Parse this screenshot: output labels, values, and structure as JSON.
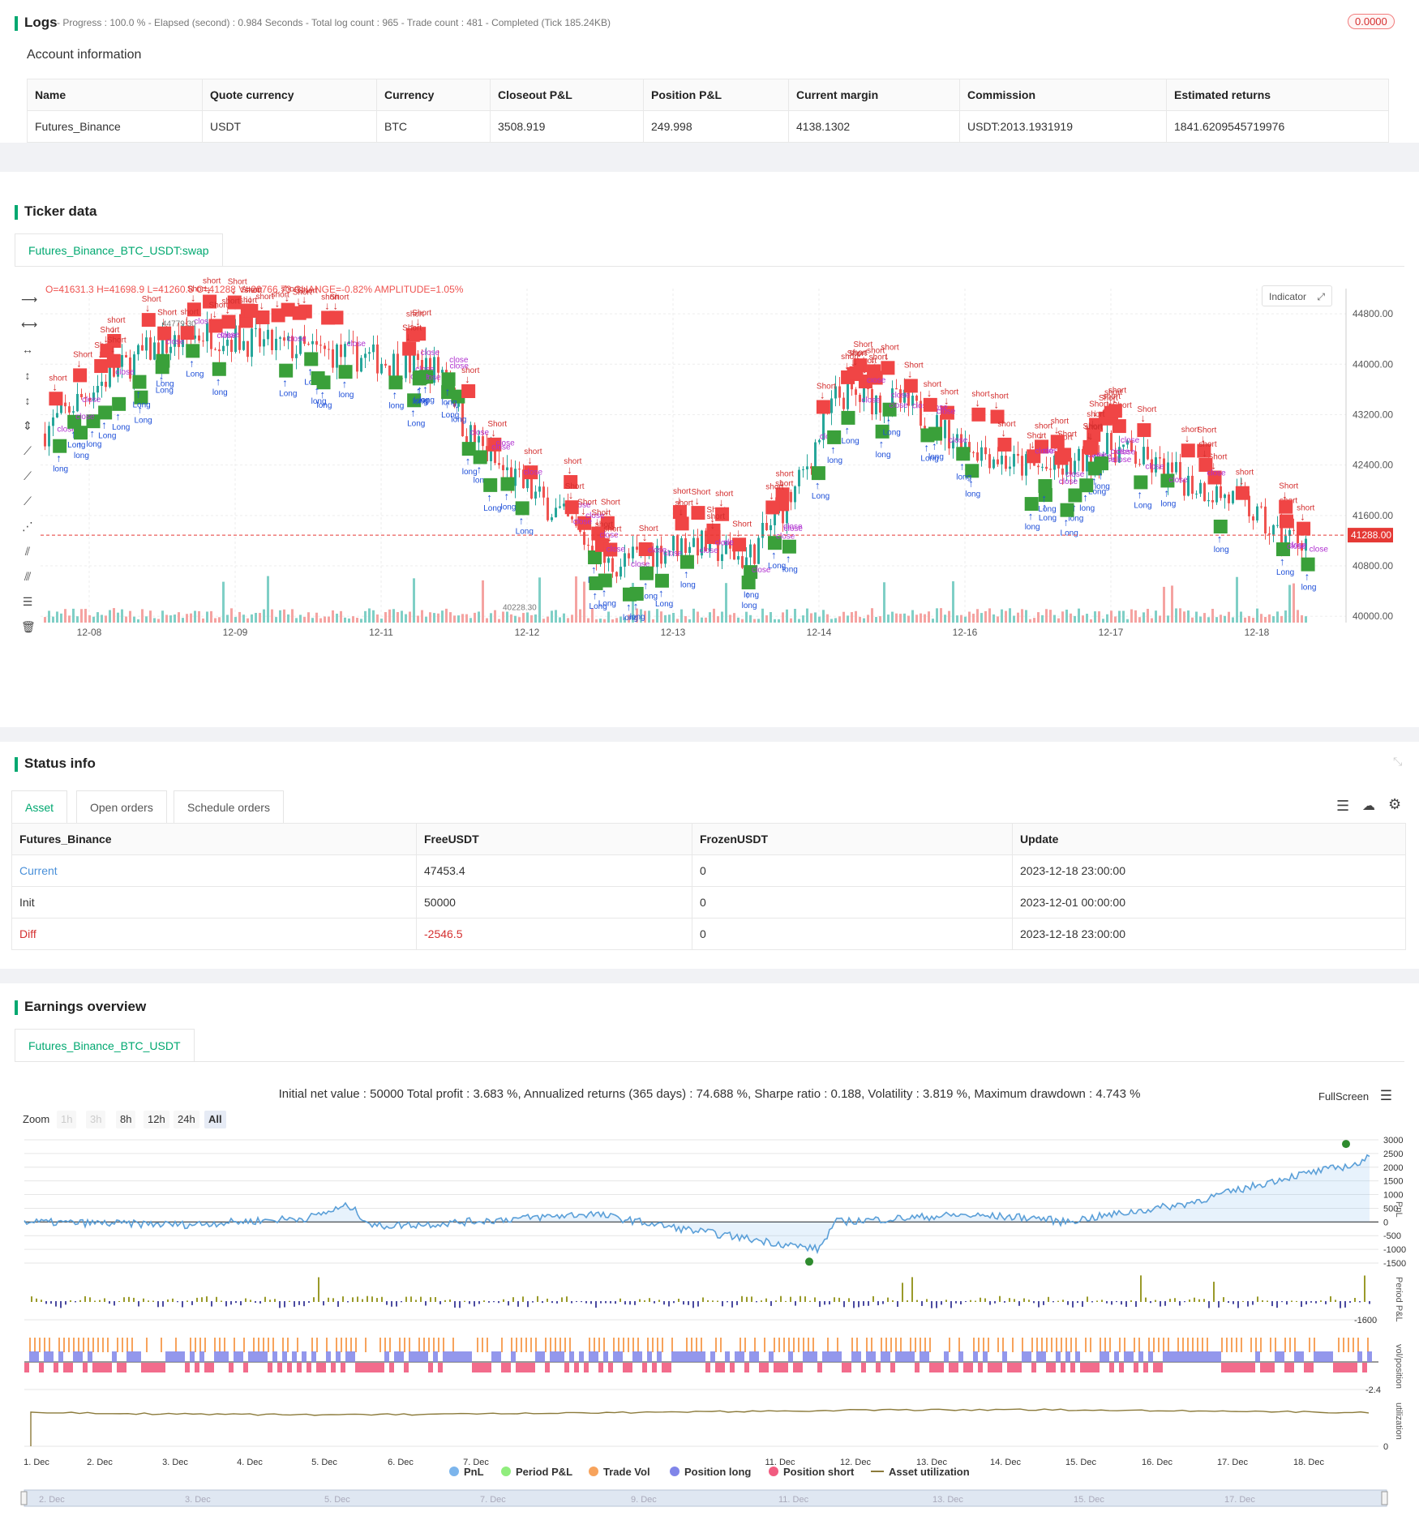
{
  "logs": {
    "title": "Logs",
    "status": "- Progress : 100.0 % - Elapsed (second) : 0.984  Seconds - Total log count : 965 - Trade count : 481 - Completed (Tick 185.24KB)",
    "badge": "0.0000"
  },
  "account": {
    "title": "Account information",
    "headers": [
      "Name",
      "Quote currency",
      "Currency",
      "Closeout P&L",
      "Position P&L",
      "Current margin",
      "Commission",
      "Estimated returns"
    ],
    "row": [
      "Futures_Binance",
      "USDT",
      "BTC",
      "3508.919",
      "249.998",
      "4138.1302",
      "USDT:2013.1931919",
      "1841.6209545719976"
    ]
  },
  "ticker": {
    "title": "Ticker data",
    "tab": "Futures_Binance_BTC_USDT:swap",
    "ohlc_o": "O=41631.3",
    "ohlc_h": "H=41698.9",
    "ohlc_l": "L=41260.8",
    "ohlc_c": "C=41288",
    "ohlc_v": "V=20766.73",
    "change": "CHANGE=-0.82%",
    "amplitude": "AMPLITUDE=1.05%",
    "indicator_btn": "Indicator",
    "last_price": "41288.00",
    "high_label": "44779.30",
    "low_label": "40228.30"
  },
  "candles_chart": {
    "type": "candlestick",
    "y_ticks": [
      "44800.00",
      "44000.00",
      "43200.00",
      "42400.00",
      "41600.00",
      "40800.00",
      "40000.00"
    ],
    "x_ticks": [
      "12-08",
      "12-09",
      "12-11",
      "12-12",
      "12-13",
      "12-14",
      "12-16",
      "12-17",
      "12-18"
    ],
    "signal_labels": {
      "short": "short",
      "Short": "Short",
      "long": "long",
      "Long": "Long",
      "close": "close",
      "one": "1"
    }
  },
  "status": {
    "title": "Status info",
    "tabs": [
      "Asset",
      "Open orders",
      "Schedule orders"
    ],
    "headers": [
      "Futures_Binance",
      "FreeUSDT",
      "FrozenUSDT",
      "Update"
    ],
    "rows": [
      [
        "Current",
        "47453.4",
        "0",
        "2023-12-18 23:00:00"
      ],
      [
        "Init",
        "50000",
        "0",
        "2023-12-01 00:00:00"
      ],
      [
        "Diff",
        "-2546.5",
        "0",
        "2023-12-18 23:00:00"
      ]
    ]
  },
  "earnings": {
    "title": "Earnings overview",
    "tab": "Futures_Binance_BTC_USDT",
    "summary": "Initial net value : 50000  Total profit : 3.683 %, Annualized returns (365 days) : 74.688 %, Sharpe ratio : 0.188, Volatility : 3.819 %, Maximum drawdown : 4.743 %",
    "fullscreen": "FullScreen",
    "zoom_label": "Zoom",
    "zoom_buttons": [
      "1h",
      "3h",
      "8h",
      "12h",
      "24h",
      "All"
    ],
    "pnl_ticks": [
      "3000",
      "2500",
      "2000",
      "1500",
      "1000",
      "500",
      "0",
      "-500",
      "-1000",
      "-1500"
    ],
    "period_tick": "-1600",
    "vol_tick": "-2.4",
    "util_tick": "0",
    "axis_titles": [
      "PnL",
      "Period P&L",
      "vol/position",
      "utilization"
    ],
    "x_ticks": [
      "1. Dec",
      "2. Dec",
      "3. Dec",
      "4. Dec",
      "5. Dec",
      "6. Dec",
      "7. Dec",
      "11. Dec",
      "12. Dec",
      "13. Dec",
      "14. Dec",
      "15. Dec",
      "16. Dec",
      "17. Dec",
      "18. Dec"
    ],
    "legend": [
      {
        "label": "PnL",
        "color": "#7cb5ec"
      },
      {
        "label": "Period P&L",
        "color": "#90ed7d"
      },
      {
        "label": "Trade Vol",
        "color": "#f7a35c"
      },
      {
        "label": "Position long",
        "color": "#8085e9"
      },
      {
        "label": "Position short",
        "color": "#f15c80"
      },
      {
        "label": "Asset utilization",
        "color": "#8b7a3a"
      }
    ],
    "navigator_ticks": [
      "2. Dec",
      "3. Dec",
      "5. Dec",
      "7. Dec",
      "9. Dec",
      "11. Dec",
      "13. Dec",
      "15. Dec",
      "17. Dec"
    ]
  }
}
